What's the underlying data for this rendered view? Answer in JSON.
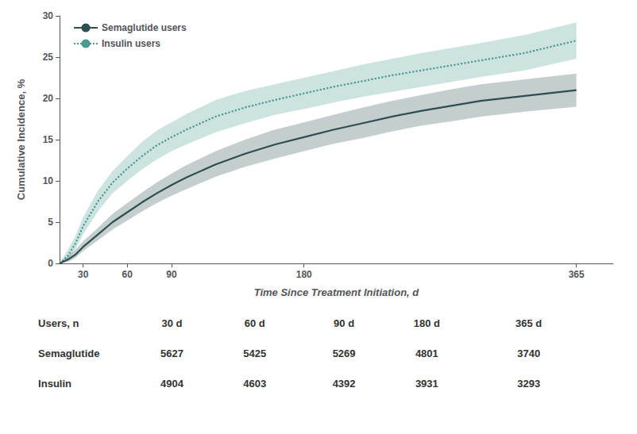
{
  "chart_data": {
    "type": "line",
    "xlabel": "Time Since Treatment Initiation, d",
    "ylabel": "Cumulative Incidence, %",
    "x": [
      14,
      20,
      25,
      30,
      40,
      50,
      60,
      70,
      80,
      90,
      100,
      120,
      140,
      160,
      180,
      200,
      220,
      240,
      260,
      280,
      300,
      330,
      365
    ],
    "xlim": [
      14,
      390
    ],
    "xticks": [
      30,
      60,
      90,
      180,
      365
    ],
    "ylim": [
      0,
      30
    ],
    "yticks": [
      0,
      5,
      10,
      15,
      20,
      25,
      30
    ],
    "grid": false,
    "legend": "upper left",
    "series": [
      {
        "name": "Semaglutide users",
        "color": "#2e4f4f",
        "line_style": "solid",
        "values": [
          0.0,
          0.5,
          1.1,
          2.0,
          3.5,
          5.0,
          6.2,
          7.4,
          8.5,
          9.5,
          10.4,
          12.0,
          13.3,
          14.4,
          15.3,
          16.2,
          17.0,
          17.8,
          18.5,
          19.1,
          19.7,
          20.3,
          21.0
        ],
        "lower": [
          0.0,
          0.2,
          0.7,
          1.5,
          2.8,
          4.1,
          5.2,
          6.3,
          7.3,
          8.2,
          9.0,
          10.5,
          11.7,
          12.7,
          13.6,
          14.5,
          15.2,
          16.0,
          16.7,
          17.2,
          17.8,
          18.4,
          19.0
        ],
        "upper": [
          0.0,
          0.9,
          1.7,
          2.7,
          4.3,
          6.0,
          7.3,
          8.6,
          9.8,
          10.9,
          11.9,
          13.6,
          15.0,
          16.2,
          17.1,
          18.0,
          18.9,
          19.7,
          20.4,
          21.1,
          21.7,
          22.3,
          23.0
        ]
      },
      {
        "name": "Insulin users",
        "color": "#4a9b8e",
        "line_style": "dotted",
        "values": [
          0.0,
          1.0,
          2.5,
          4.5,
          7.5,
          9.8,
          11.5,
          13.0,
          14.3,
          15.3,
          16.2,
          17.8,
          18.9,
          19.8,
          20.6,
          21.4,
          22.1,
          22.8,
          23.4,
          24.0,
          24.6,
          25.5,
          27.0
        ],
        "lower": [
          0.0,
          0.5,
          1.8,
          3.5,
          6.3,
          8.5,
          10.0,
          11.4,
          12.6,
          13.6,
          14.4,
          15.9,
          17.0,
          18.0,
          18.7,
          19.5,
          20.2,
          20.8,
          21.4,
          22.0,
          22.6,
          23.4,
          24.8
        ],
        "upper": [
          0.0,
          1.8,
          3.4,
          5.6,
          8.8,
          11.2,
          13.0,
          14.7,
          16.1,
          17.1,
          18.1,
          19.8,
          20.9,
          21.7,
          22.5,
          23.3,
          24.1,
          24.8,
          25.5,
          26.1,
          26.7,
          27.7,
          29.2
        ]
      }
    ],
    "table": {
      "header": [
        "Users, n",
        "30 d",
        "60 d",
        "90 d",
        "180 d",
        "365 d"
      ],
      "rows": [
        {
          "label": "Semaglutide",
          "values": [
            5627,
            5425,
            5269,
            4801,
            3740
          ]
        },
        {
          "label": "Insulin",
          "values": [
            4904,
            4603,
            4392,
            3931,
            3293
          ]
        }
      ]
    }
  }
}
